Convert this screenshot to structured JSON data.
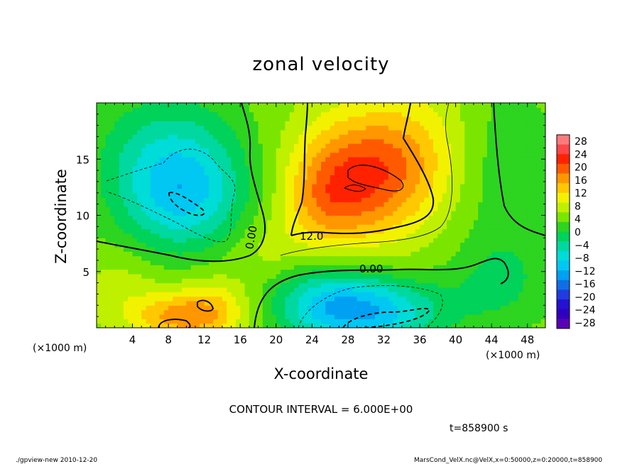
{
  "chart_data": {
    "type": "heatmap",
    "title": "zonal velocity",
    "xlabel": "X-coordinate",
    "ylabel": "Z-coordinate",
    "x_unit_label": "(×1000 m)",
    "x_unit_label_right": "(×1000 m)",
    "xlim": [
      0,
      50
    ],
    "ylim": [
      0,
      20
    ],
    "x_ticks": [
      4,
      8,
      12,
      16,
      20,
      24,
      28,
      32,
      36,
      40,
      44,
      48
    ],
    "y_ticks": [
      5,
      10,
      15
    ],
    "colorbar": {
      "labels": [
        "28",
        "24",
        "20",
        "16",
        "12",
        "8",
        "4",
        "0",
        "−4",
        "−8",
        "−12",
        "−16",
        "−20",
        "−24",
        "−28"
      ],
      "colors": [
        "#ff7b7b",
        "#ff4747",
        "#ff2200",
        "#ff5a00",
        "#ff9700",
        "#ffc800",
        "#f2f200",
        "#bff000",
        "#7ae600",
        "#2dd420",
        "#00d25a",
        "#00d8a0",
        "#00dcd8",
        "#00c8f2",
        "#00a0f2",
        "#0f6ee6",
        "#1f3ce0",
        "#2411d2",
        "#2f00c0",
        "#5a00b4"
      ]
    },
    "contour_interval_text": "CONTOUR INTERVAL = 6.000E+00",
    "contour_labels": [
      "0.00",
      "12.0",
      "0.00"
    ],
    "fields": {
      "base_value": 1,
      "blobs": [
        {
          "x": 29.5,
          "z": 13.5,
          "amp": 17,
          "sx": 5,
          "sz": 4
        },
        {
          "x": 25,
          "z": 11,
          "amp": 6,
          "sx": 3,
          "sz": 3
        },
        {
          "x": 36,
          "z": 16,
          "amp": 5,
          "sx": 4,
          "sz": 4
        },
        {
          "x": 9.5,
          "z": 11.5,
          "amp": -13,
          "sx": 5,
          "sz": 3.5
        },
        {
          "x": 8,
          "z": 16,
          "amp": -8,
          "sx": 6,
          "sz": 4
        },
        {
          "x": 30,
          "z": 1.5,
          "amp": -17,
          "sx": 6,
          "sz": 2.2
        },
        {
          "x": 25,
          "z": 3,
          "amp": -6,
          "sx": 4,
          "sz": 2.5
        },
        {
          "x": 9,
          "z": 1,
          "amp": 11,
          "sx": 4,
          "sz": 1.5
        },
        {
          "x": 13,
          "z": 2,
          "amp": 6,
          "sx": 3,
          "sz": 2
        },
        {
          "x": 3,
          "z": 4,
          "amp": 3,
          "sx": 3,
          "sz": 2
        },
        {
          "x": 46,
          "z": 14,
          "amp": -4,
          "sx": 4,
          "sz": 6
        },
        {
          "x": 45,
          "z": 4,
          "amp": -5,
          "sx": 4,
          "sz": 3
        },
        {
          "x": 19,
          "z": 7,
          "amp": 3,
          "sx": 3,
          "sz": 2
        }
      ]
    }
  },
  "text": {
    "time": "t=858900 s",
    "footer_left": "./gpview-new  2010-12-20",
    "footer_right": "MarsCond_VelX.nc@VelX,x=0:50000,z=0:20000,t=858900"
  }
}
